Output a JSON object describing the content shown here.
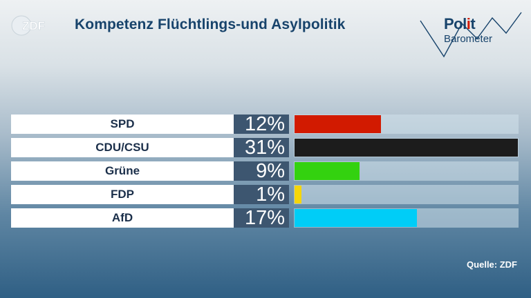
{
  "header": {
    "logo_text": "ZDF",
    "title": "Kompetenz Flüchtlings-und Asylpolitik",
    "brand_line1_a": "Pol",
    "brand_line1_b": "i",
    "brand_line1_c": "t",
    "brand_line2": "Barometer"
  },
  "chart_data": {
    "type": "bar",
    "orientation": "horizontal",
    "categories": [
      "SPD",
      "CDU/CSU",
      "Grüne",
      "FDP",
      "AfD"
    ],
    "values": [
      12,
      31,
      9,
      1,
      17
    ],
    "value_labels": [
      "12%",
      "31%",
      "9%",
      "1%",
      "17%"
    ],
    "colors": [
      "#d21a00",
      "#1c1c1c",
      "#33d20f",
      "#f5d60a",
      "#00cdf7"
    ],
    "xlim": [
      0,
      31
    ],
    "grid": false,
    "legend": "none"
  },
  "footer": {
    "source": "Quelle: ZDF"
  }
}
